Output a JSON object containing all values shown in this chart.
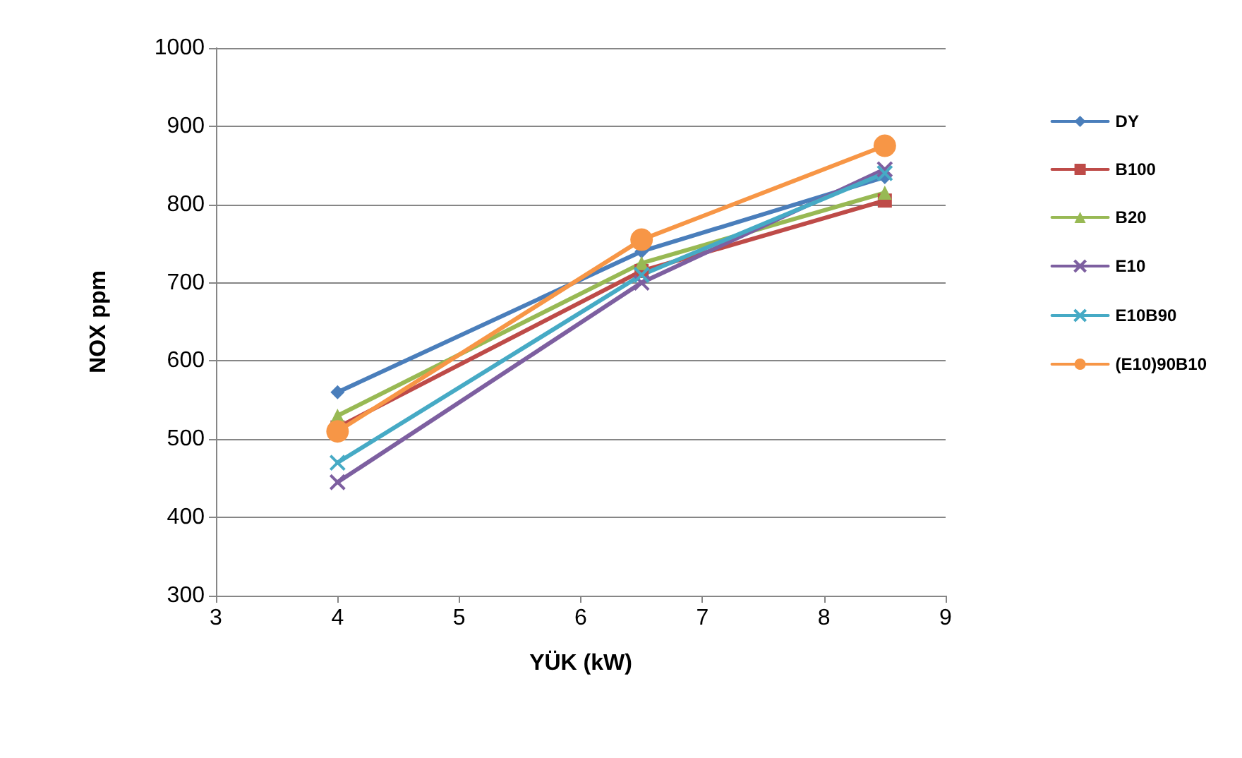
{
  "chart_data": {
    "type": "line",
    "xlabel": "YÜK (kW)",
    "ylabel": "NOX ppm",
    "x": [
      4,
      6.5,
      8.5
    ],
    "xlim": [
      3,
      9
    ],
    "xticks": [
      3,
      4,
      5,
      6,
      7,
      8,
      9
    ],
    "ylim": [
      300,
      1000
    ],
    "yticks": [
      300,
      400,
      500,
      600,
      700,
      800,
      900,
      1000
    ],
    "grid": "y",
    "legend": "right",
    "series": [
      {
        "name": "DY",
        "color": "#4a7ebb",
        "marker": "diamond",
        "values": [
          560,
          740,
          835
        ]
      },
      {
        "name": "B100",
        "color": "#be4b48",
        "marker": "square",
        "values": [
          515,
          715,
          805
        ]
      },
      {
        "name": "B20",
        "color": "#98b954",
        "marker": "triangle",
        "values": [
          530,
          725,
          815
        ]
      },
      {
        "name": "E10",
        "color": "#7d5fa0",
        "marker": "cross",
        "values": [
          445,
          700,
          845
        ]
      },
      {
        "name": "E10B90",
        "color": "#46aac5",
        "marker": "cross",
        "values": [
          470,
          710,
          840
        ]
      },
      {
        "name": "(E10)90B10",
        "color": "#f79646",
        "marker": "circle",
        "values": [
          510,
          755,
          875
        ]
      }
    ]
  }
}
